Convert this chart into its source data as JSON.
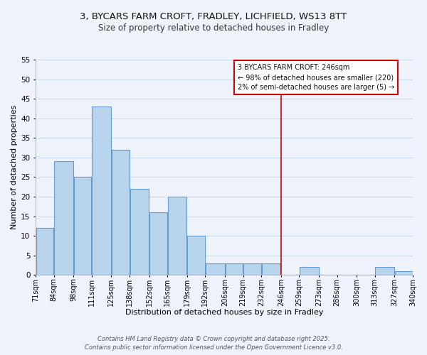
{
  "title_line1": "3, BYCARS FARM CROFT, FRADLEY, LICHFIELD, WS13 8TT",
  "title_line2": "Size of property relative to detached houses in Fradley",
  "xlabel": "Distribution of detached houses by size in Fradley",
  "ylabel": "Number of detached properties",
  "bar_edges": [
    71,
    84,
    98,
    111,
    125,
    138,
    152,
    165,
    179,
    192,
    206,
    219,
    232,
    246,
    259,
    273,
    286,
    300,
    313,
    327,
    340
  ],
  "bar_heights": [
    12,
    29,
    25,
    43,
    32,
    22,
    16,
    20,
    10,
    3,
    3,
    3,
    3,
    0,
    2,
    0,
    0,
    0,
    2,
    1
  ],
  "bar_color": "#b8d4ec",
  "bar_edgecolor": "#6699cc",
  "vline_x": 246,
  "vline_color": "#cc0000",
  "ylim": [
    0,
    55
  ],
  "yticks": [
    0,
    5,
    10,
    15,
    20,
    25,
    30,
    35,
    40,
    45,
    50,
    55
  ],
  "tick_labels": [
    "71sqm",
    "84sqm",
    "98sqm",
    "111sqm",
    "125sqm",
    "138sqm",
    "152sqm",
    "165sqm",
    "179sqm",
    "192sqm",
    "206sqm",
    "219sqm",
    "232sqm",
    "246sqm",
    "259sqm",
    "273sqm",
    "286sqm",
    "300sqm",
    "313sqm",
    "327sqm",
    "340sqm"
  ],
  "annotation_title": "3 BYCARS FARM CROFT: 246sqm",
  "annotation_line1": "← 98% of detached houses are smaller (220)",
  "annotation_line2": "2% of semi-detached houses are larger (5) →",
  "annotation_box_edgecolor": "#cc0000",
  "footer_line1": "Contains HM Land Registry data © Crown copyright and database right 2025.",
  "footer_line2": "Contains public sector information licensed under the Open Government Licence v3.0.",
  "grid_color": "#c8d8ec",
  "background_color": "#eef2fa",
  "title_fontsize": 9.5,
  "subtitle_fontsize": 8.5,
  "xlabel_fontsize": 8,
  "ylabel_fontsize": 8,
  "tick_fontsize": 7,
  "ytick_fontsize": 7.5,
  "ann_fontsize": 7,
  "footer_fontsize": 6
}
